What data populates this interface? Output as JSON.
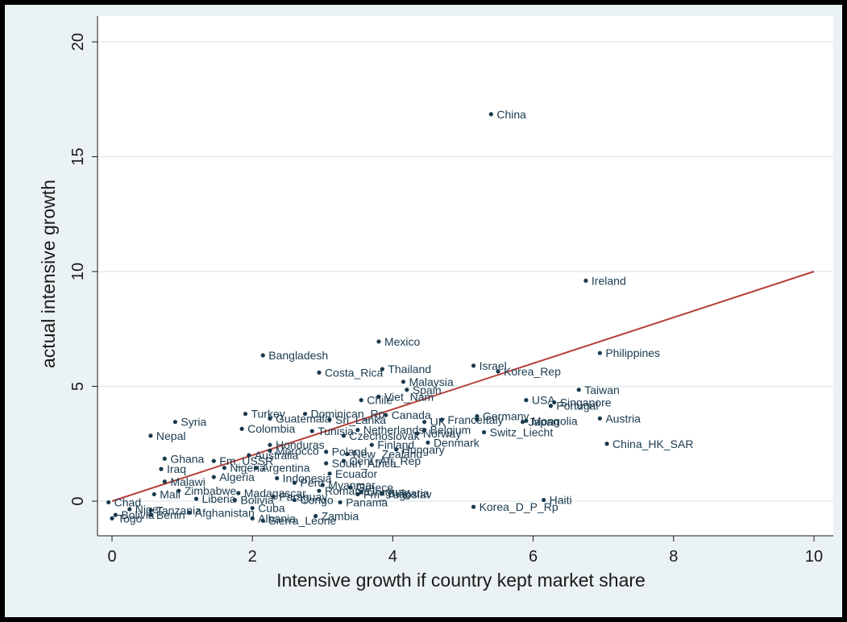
{
  "chart_data": {
    "type": "scatter",
    "xlabel": "Intensive growth if country kept market share",
    "ylabel": "actual intensive growth",
    "xlim": [
      -0.3,
      10.3
    ],
    "ylim": [
      -1.3,
      20.5
    ],
    "xticks": [
      0,
      2,
      4,
      6,
      8,
      10
    ],
    "yticks": [
      0,
      5,
      10,
      15,
      20
    ],
    "grid": "horizontal",
    "colors": {
      "plot_bg": "#ffffff",
      "outer_bg": "#eaf2f3",
      "point": "#1a3a4e",
      "line": "#b5403a",
      "grid": "#e3ecee"
    },
    "fit_line": {
      "x": [
        0,
        10
      ],
      "y": [
        0,
        10
      ]
    },
    "points": [
      {
        "label": "China",
        "x": 5.4,
        "y": 16.85
      },
      {
        "label": "Ireland",
        "x": 6.75,
        "y": 9.6
      },
      {
        "label": "Mexico",
        "x": 3.8,
        "y": 6.95
      },
      {
        "label": "Philippines",
        "x": 6.95,
        "y": 6.45
      },
      {
        "label": "Bangladesh",
        "x": 2.15,
        "y": 6.35
      },
      {
        "label": "Israel",
        "x": 5.15,
        "y": 5.9
      },
      {
        "label": "Thailand",
        "x": 3.85,
        "y": 5.75
      },
      {
        "label": "Korea_Rep",
        "x": 5.5,
        "y": 5.65
      },
      {
        "label": "Costa_Rica",
        "x": 2.95,
        "y": 5.6
      },
      {
        "label": "Malaysia",
        "x": 4.15,
        "y": 5.2
      },
      {
        "label": "Spain",
        "x": 4.2,
        "y": 4.85
      },
      {
        "label": "Taiwan",
        "x": 6.65,
        "y": 4.85
      },
      {
        "label": "Viet_Nam",
        "x": 3.8,
        "y": 4.55
      },
      {
        "label": "Chile",
        "x": 3.55,
        "y": 4.4
      },
      {
        "label": "USA",
        "x": 5.9,
        "y": 4.4
      },
      {
        "label": "Singapore",
        "x": 6.3,
        "y": 4.3
      },
      {
        "label": "Portugal",
        "x": 6.25,
        "y": 4.15
      },
      {
        "label": "Turkey",
        "x": 1.9,
        "y": 3.8
      },
      {
        "label": "Dominican_Rp",
        "x": 2.75,
        "y": 3.8
      },
      {
        "label": "Canada",
        "x": 3.9,
        "y": 3.75
      },
      {
        "label": "Germany",
        "x": 5.2,
        "y": 3.7
      },
      {
        "label": "Guatemala",
        "x": 2.25,
        "y": 3.6
      },
      {
        "label": "Sri_Lanka",
        "x": 3.1,
        "y": 3.55
      },
      {
        "label": "France",
        "x": 4.7,
        "y": 3.55
      },
      {
        "label": "Italy",
        "x": 5.2,
        "y": 3.55
      },
      {
        "label": "Austria",
        "x": 6.95,
        "y": 3.6
      },
      {
        "label": "Syria",
        "x": 0.9,
        "y": 3.45
      },
      {
        "label": "UK",
        "x": 4.45,
        "y": 3.45
      },
      {
        "label": "Mongolia",
        "x": 5.9,
        "y": 3.5
      },
      {
        "label": "Japan",
        "x": 5.85,
        "y": 3.45
      },
      {
        "label": "Colombia",
        "x": 1.85,
        "y": 3.15
      },
      {
        "label": "Tunisia",
        "x": 2.85,
        "y": 3.05
      },
      {
        "label": "Netherlands",
        "x": 3.5,
        "y": 3.1
      },
      {
        "label": "Belgium",
        "x": 4.45,
        "y": 3.1
      },
      {
        "label": "Switz_Liecht",
        "x": 5.3,
        "y": 3.0
      },
      {
        "label": "Norway",
        "x": 4.35,
        "y": 2.95
      },
      {
        "label": "Czechoslovak",
        "x": 3.3,
        "y": 2.85
      },
      {
        "label": "Nepal",
        "x": 0.55,
        "y": 2.85
      },
      {
        "label": "China_HK_SAR",
        "x": 7.05,
        "y": 2.5
      },
      {
        "label": "Denmark",
        "x": 4.5,
        "y": 2.55
      },
      {
        "label": "Honduras",
        "x": 2.25,
        "y": 2.45
      },
      {
        "label": "Finland",
        "x": 3.7,
        "y": 2.45
      },
      {
        "label": "Hungary",
        "x": 4.05,
        "y": 2.25
      },
      {
        "label": "Morocco",
        "x": 2.25,
        "y": 2.2
      },
      {
        "label": "Australia",
        "x": 1.95,
        "y": 2.0
      },
      {
        "label": "Poland",
        "x": 3.05,
        "y": 2.15
      },
      {
        "label": "New_Zealand",
        "x": 3.35,
        "y": 2.05
      },
      {
        "label": "Ghana",
        "x": 0.75,
        "y": 1.85
      },
      {
        "label": "Fm_USSR",
        "x": 1.45,
        "y": 1.75
      },
      {
        "label": "Cent_Afr_Rep",
        "x": 3.3,
        "y": 1.75
      },
      {
        "label": "South_Africa",
        "x": 3.05,
        "y": 1.65
      },
      {
        "label": "Iraq",
        "x": 0.7,
        "y": 1.4
      },
      {
        "label": "Nigeria",
        "x": 1.6,
        "y": 1.45
      },
      {
        "label": "Argentina",
        "x": 2.05,
        "y": 1.45
      },
      {
        "label": "Ecuador",
        "x": 3.1,
        "y": 1.2
      },
      {
        "label": "Algeria",
        "x": 1.45,
        "y": 1.05
      },
      {
        "label": "Indonesia",
        "x": 2.35,
        "y": 1.0
      },
      {
        "label": "Malawi",
        "x": 0.75,
        "y": 0.85
      },
      {
        "label": "Peru",
        "x": 2.6,
        "y": 0.8
      },
      {
        "label": "Myanmar",
        "x": 3.0,
        "y": 0.7
      },
      {
        "label": "Greece",
        "x": 3.4,
        "y": 0.6
      },
      {
        "label": "Uruguay",
        "x": 3.55,
        "y": 0.4
      },
      {
        "label": "Romania",
        "x": 2.95,
        "y": 0.45
      },
      {
        "label": "Bulgaria",
        "x": 3.85,
        "y": 0.35
      },
      {
        "label": "Fm_Yugoslav",
        "x": 3.5,
        "y": 0.3
      },
      {
        "label": "Mali",
        "x": 0.6,
        "y": 0.3
      },
      {
        "label": "Zimbabwe",
        "x": 0.95,
        "y": 0.45
      },
      {
        "label": "Madagascar",
        "x": 1.8,
        "y": 0.35
      },
      {
        "label": "Paraguay",
        "x": 2.3,
        "y": 0.2
      },
      {
        "label": "Liberia",
        "x": 1.2,
        "y": 0.1
      },
      {
        "label": "Bolivia",
        "x": 1.75,
        "y": 0.05
      },
      {
        "label": "Congo",
        "x": 2.6,
        "y": 0.05
      },
      {
        "label": "Panama",
        "x": 3.25,
        "y": -0.05
      },
      {
        "label": "Haiti",
        "x": 6.15,
        "y": 0.05
      },
      {
        "label": "Korea_D_P_Rp",
        "x": 5.15,
        "y": -0.25
      },
      {
        "label": "Chad",
        "x": -0.05,
        "y": -0.05
      },
      {
        "label": "Cuba",
        "x": 2.0,
        "y": -0.3
      },
      {
        "label": "Niger",
        "x": 0.25,
        "y": -0.35
      },
      {
        "label": "Tanzania",
        "x": 0.55,
        "y": -0.4
      },
      {
        "label": "Afghanistan",
        "x": 1.1,
        "y": -0.5
      },
      {
        "label": "Zambia",
        "x": 2.9,
        "y": -0.65
      },
      {
        "label": "Albania",
        "x": 2.0,
        "y": -0.75
      },
      {
        "label": "Sierra_Leone",
        "x": 2.15,
        "y": -0.85
      },
      {
        "label": "Benin",
        "x": 0.55,
        "y": -0.6
      },
      {
        "label": "Bolivia_2",
        "x": 0.05,
        "y": -0.6
      },
      {
        "label": "Togo",
        "x": 0.0,
        "y": -0.75
      }
    ]
  }
}
